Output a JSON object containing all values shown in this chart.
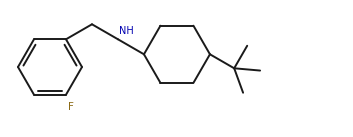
{
  "background": "#ffffff",
  "line_color": "#1a1a1a",
  "nh_color": "#0000b0",
  "f_color": "#8B6914",
  "line_width": 1.4,
  "font_size_label": 7.0,
  "figsize": [
    3.53,
    1.37
  ],
  "dpi": 100
}
